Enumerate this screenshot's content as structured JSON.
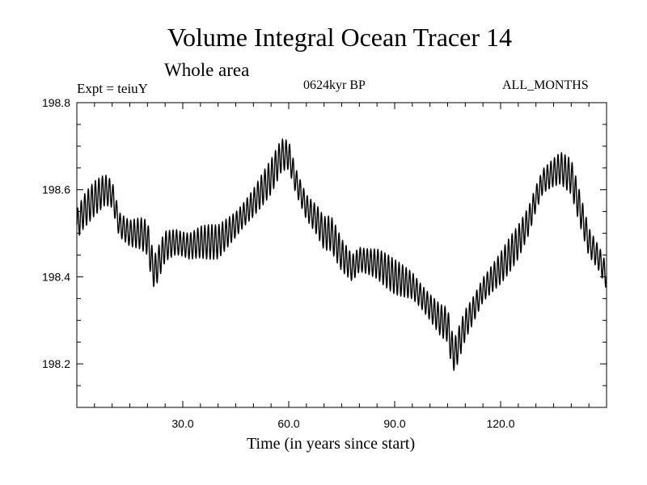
{
  "header": {
    "title": "Volume Integral Ocean Tracer 14",
    "subtitle": "Whole area",
    "expt": "Expt = teiuY",
    "period": "0624kyr BP",
    "months": "ALL_MONTHS"
  },
  "chart_data": {
    "type": "line",
    "title": "Volume Integral Ocean Tracer 14",
    "subtitle": "Whole area",
    "xlabel": "Time (in years since start)",
    "ylabel": "",
    "xlim": [
      0,
      150
    ],
    "ylim": [
      198.1,
      198.8
    ],
    "xticks": [
      30,
      60,
      90,
      120
    ],
    "xtick_labels": [
      "30.0",
      "60.0",
      "90.0",
      "120.0"
    ],
    "yticks": [
      198.2,
      198.4,
      198.6,
      198.8
    ],
    "ytick_labels": [
      "198.2",
      "198.4",
      "198.6",
      "198.8"
    ],
    "grid": false,
    "series": [
      {
        "color": "#000000",
        "note_trend_points_x": [
          0,
          2,
          5,
          8,
          10,
          12,
          15,
          18,
          20,
          21,
          22,
          25,
          28,
          32,
          35,
          38,
          40,
          45,
          50,
          55,
          58,
          60,
          62,
          65,
          68,
          70,
          72,
          75,
          78,
          80,
          85,
          90,
          95,
          100,
          103,
          105,
          106,
          107,
          110,
          112,
          115,
          118,
          120,
          125,
          128,
          130,
          132,
          135,
          137,
          140,
          141,
          143,
          145,
          148,
          150
        ],
        "x": [
          0,
          2,
          5,
          8,
          10,
          12,
          15,
          18,
          20,
          21,
          22,
          25,
          28,
          32,
          35,
          38,
          40,
          45,
          50,
          55,
          58,
          60,
          62,
          65,
          68,
          70,
          72,
          75,
          78,
          80,
          85,
          90,
          95,
          100,
          103,
          105,
          106,
          107,
          110,
          112,
          115,
          118,
          120,
          125,
          128,
          130,
          132,
          135,
          137,
          140,
          141,
          143,
          145,
          148,
          150
        ],
        "y": [
          198.52,
          198.55,
          198.58,
          198.6,
          198.59,
          198.52,
          198.5,
          198.5,
          198.49,
          198.44,
          198.41,
          198.47,
          198.48,
          198.47,
          198.48,
          198.48,
          198.48,
          198.52,
          198.57,
          198.63,
          198.68,
          198.68,
          198.62,
          198.56,
          198.53,
          198.5,
          198.5,
          198.45,
          198.42,
          198.44,
          198.43,
          198.4,
          198.38,
          198.33,
          198.3,
          198.29,
          198.24,
          198.22,
          198.29,
          198.32,
          198.37,
          198.4,
          198.42,
          198.48,
          198.53,
          198.58,
          198.62,
          198.64,
          198.65,
          198.63,
          198.6,
          198.54,
          198.48,
          198.44,
          198.4
        ],
        "oscillation_amplitude": 0.04,
        "oscillation_period_years": 1
      }
    ]
  }
}
